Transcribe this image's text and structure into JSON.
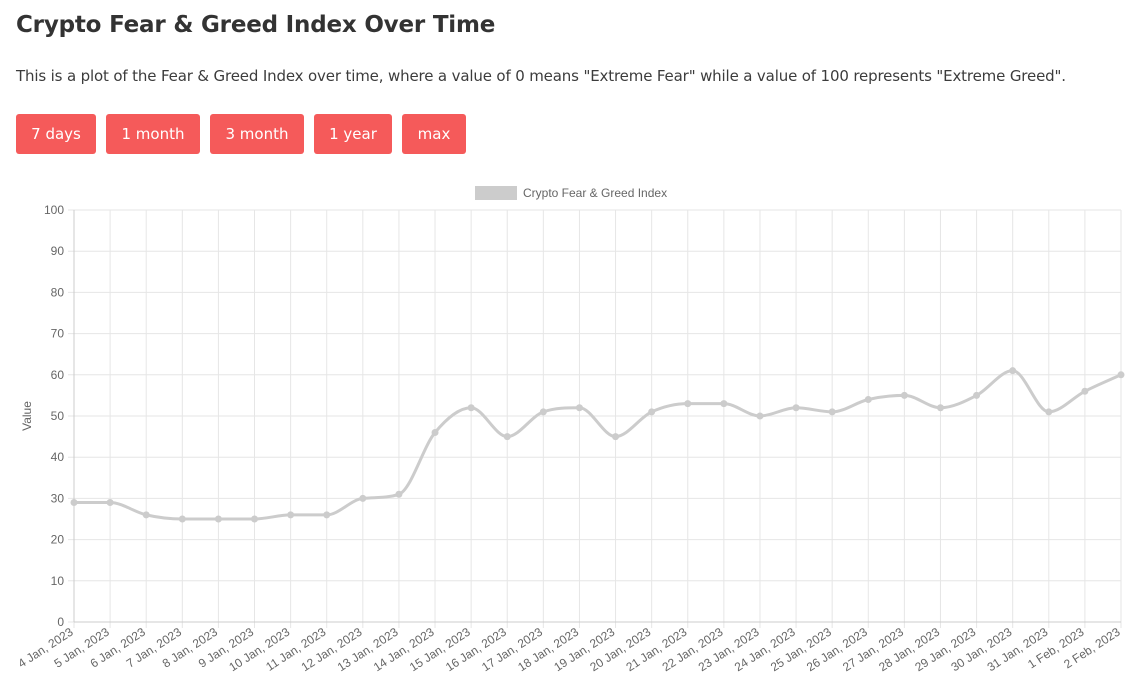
{
  "header": {
    "title": "Crypto Fear & Greed Index Over Time",
    "description": "This is a plot of the Fear & Greed Index over time, where a value of 0 means \"Extreme Fear\" while a value of 100 represents \"Extreme Greed\"."
  },
  "range_buttons": [
    {
      "label": "7 days"
    },
    {
      "label": "1 month"
    },
    {
      "label": "3 month"
    },
    {
      "label": "1 year"
    },
    {
      "label": "max"
    }
  ],
  "colors": {
    "button_bg": "#f55a5a",
    "series": "#cccccc",
    "grid": "#e6e6e6",
    "tick_text": "#666666"
  },
  "chart_data": {
    "type": "line",
    "title": "",
    "xlabel": "",
    "ylabel": "Value",
    "ylim": [
      0,
      100
    ],
    "y_ticks": [
      0,
      10,
      20,
      30,
      40,
      50,
      60,
      70,
      80,
      90,
      100
    ],
    "grid": true,
    "legend_position": "top-center",
    "categories": [
      "4 Jan, 2023",
      "5 Jan, 2023",
      "6 Jan, 2023",
      "7 Jan, 2023",
      "8 Jan, 2023",
      "9 Jan, 2023",
      "10 Jan, 2023",
      "11 Jan, 2023",
      "12 Jan, 2023",
      "13 Jan, 2023",
      "14 Jan, 2023",
      "15 Jan, 2023",
      "16 Jan, 2023",
      "17 Jan, 2023",
      "18 Jan, 2023",
      "19 Jan, 2023",
      "20 Jan, 2023",
      "21 Jan, 2023",
      "22 Jan, 2023",
      "23 Jan, 2023",
      "24 Jan, 2023",
      "25 Jan, 2023",
      "26 Jan, 2023",
      "27 Jan, 2023",
      "28 Jan, 2023",
      "29 Jan, 2023",
      "30 Jan, 2023",
      "31 Jan, 2023",
      "1 Feb, 2023",
      "2 Feb, 2023"
    ],
    "series": [
      {
        "name": "Crypto Fear & Greed Index",
        "values": [
          29,
          29,
          26,
          25,
          25,
          25,
          26,
          26,
          30,
          31,
          46,
          52,
          45,
          51,
          52,
          45,
          51,
          53,
          53,
          50,
          52,
          51,
          54,
          55,
          52,
          55,
          61,
          51,
          56,
          60
        ]
      }
    ]
  }
}
